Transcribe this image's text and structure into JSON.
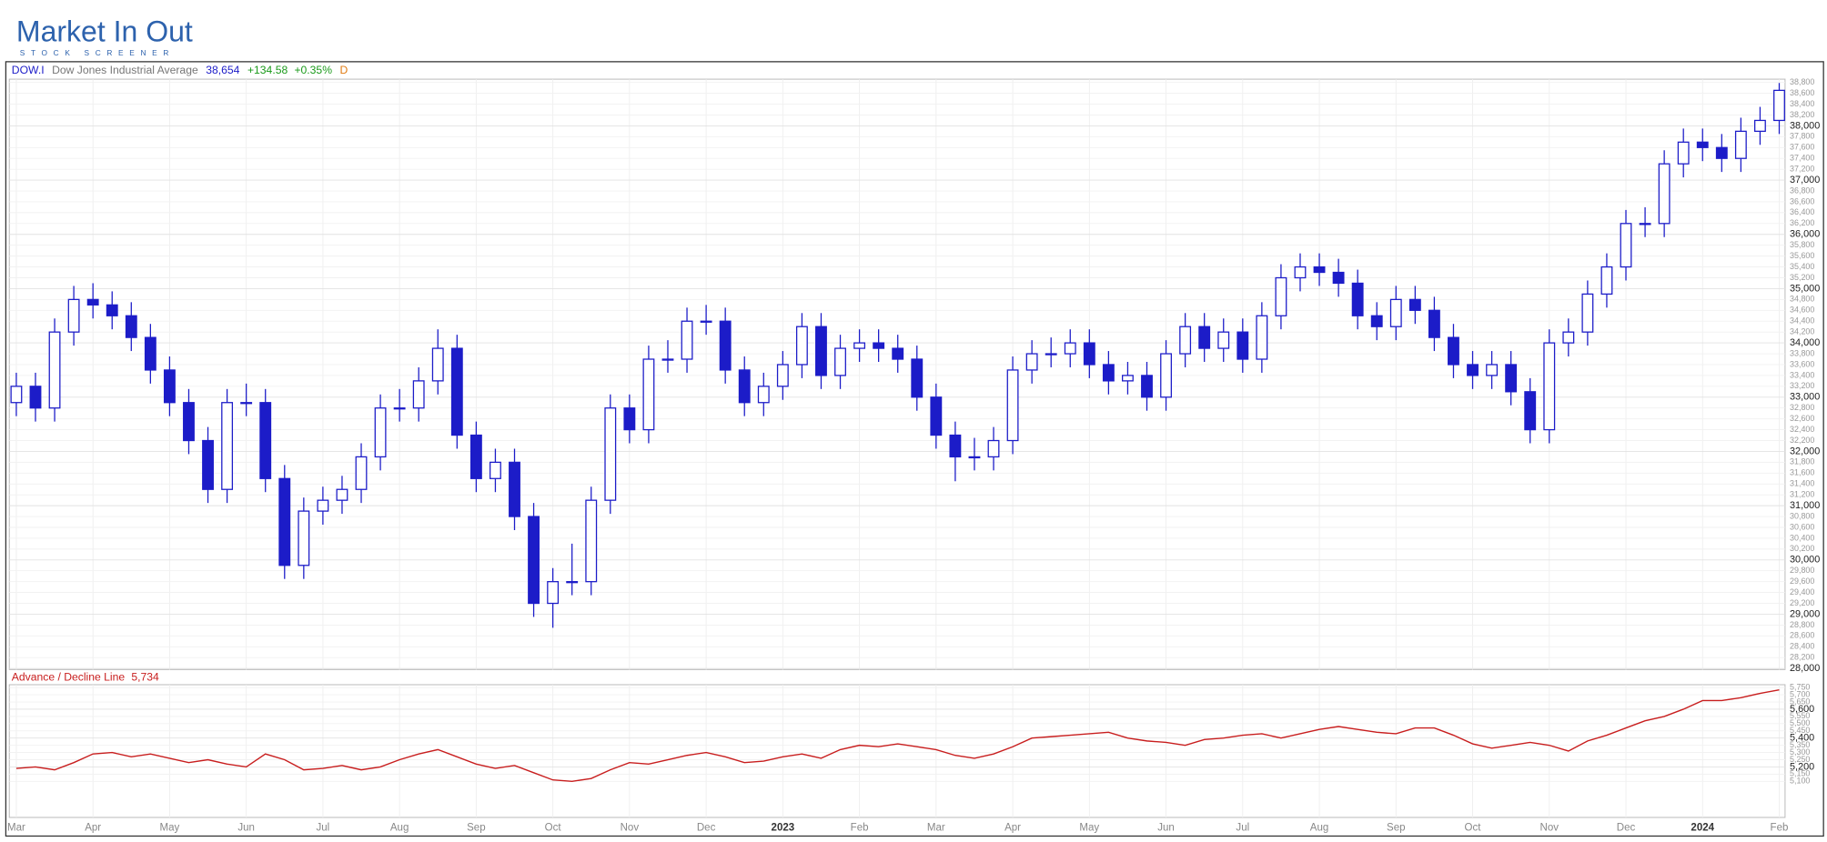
{
  "logo": {
    "name": "Market In Out",
    "tagline": "STOCK SCREENER"
  },
  "chart_data": [
    {
      "type": "candlestick",
      "symbol": "DOW.I",
      "name": "Dow Jones Industrial Average",
      "last": {
        "value": 38654,
        "label": "38,654"
      },
      "change": {
        "value": 134.58,
        "label": "+134.58"
      },
      "change_pct": {
        "value": 0.35,
        "label": "+0.35%"
      },
      "period": "D",
      "color": "#1c1cc8",
      "grid": true,
      "categories": [
        "Mar",
        null,
        null,
        null,
        "Apr",
        null,
        null,
        null,
        "May",
        null,
        null,
        null,
        "Jun",
        null,
        null,
        null,
        "Jul",
        null,
        null,
        null,
        "Aug",
        null,
        null,
        null,
        "Sep",
        null,
        null,
        null,
        "Oct",
        null,
        null,
        null,
        "Nov",
        null,
        null,
        null,
        "Dec",
        null,
        null,
        null,
        "2023",
        null,
        null,
        null,
        "Feb",
        null,
        null,
        null,
        "Mar",
        null,
        null,
        null,
        "Apr",
        null,
        null,
        null,
        "May",
        null,
        null,
        null,
        "Jun",
        null,
        null,
        null,
        "Jul",
        null,
        null,
        null,
        "Aug",
        null,
        null,
        null,
        "Sep",
        null,
        null,
        null,
        "Oct",
        null,
        null,
        null,
        "Nov",
        null,
        null,
        null,
        "Dec",
        null,
        null,
        null,
        "2024",
        null,
        null,
        null,
        "Feb"
      ],
      "open": [
        32900,
        33200,
        32800,
        34200,
        34800,
        34700,
        34500,
        34100,
        33500,
        32900,
        32200,
        31300,
        32900,
        32900,
        31500,
        29900,
        30900,
        31100,
        31300,
        31900,
        32800,
        32800,
        33300,
        33900,
        32300,
        31500,
        31800,
        30800,
        29200,
        29600,
        29600,
        31100,
        32800,
        32400,
        33700,
        33700,
        34400,
        34400,
        33500,
        32900,
        33200,
        33600,
        34300,
        33400,
        33900,
        34000,
        33900,
        33700,
        33000,
        32300,
        31900,
        31900,
        32200,
        33500,
        33800,
        33800,
        34000,
        33600,
        33300,
        33400,
        33000,
        33800,
        34300,
        33900,
        34200,
        33700,
        34500,
        35200,
        35400,
        35300,
        35100,
        34500,
        34300,
        34800,
        34600,
        34100,
        33600,
        33400,
        33600,
        33100,
        32400,
        34000,
        34200,
        34900,
        35400,
        36200,
        36200,
        37300,
        37700,
        37600,
        37400,
        37900,
        38100
      ],
      "high": [
        33450,
        33450,
        34450,
        35050,
        35100,
        34950,
        34750,
        34350,
        33750,
        33150,
        32450,
        33150,
        33250,
        33150,
        31750,
        31150,
        31350,
        31550,
        32150,
        33050,
        33150,
        33550,
        34250,
        34150,
        32550,
        32050,
        32050,
        31050,
        29850,
        30300,
        31350,
        33050,
        33050,
        33950,
        34050,
        34650,
        34700,
        34650,
        33750,
        33450,
        33850,
        34550,
        34550,
        34150,
        34250,
        34250,
        34150,
        33950,
        33250,
        32550,
        32250,
        32450,
        33750,
        34050,
        34100,
        34250,
        34250,
        33850,
        33650,
        33650,
        34050,
        34550,
        34550,
        34450,
        34450,
        34750,
        35450,
        35650,
        35650,
        35550,
        35350,
        34750,
        35050,
        35050,
        34850,
        34350,
        33850,
        33850,
        33850,
        33350,
        34250,
        34450,
        35150,
        35650,
        36450,
        36500,
        37550,
        37950,
        37950,
        37850,
        38150,
        38350,
        38790
      ],
      "low": [
        32650,
        32550,
        32550,
        33950,
        34450,
        34250,
        33850,
        33250,
        32650,
        31950,
        31050,
        31050,
        32650,
        31250,
        29650,
        29650,
        30650,
        30850,
        31050,
        31650,
        32550,
        32550,
        33050,
        32050,
        31250,
        31250,
        30550,
        28950,
        28750,
        29350,
        29350,
        30850,
        32150,
        32150,
        33450,
        33450,
        34150,
        33250,
        32650,
        32650,
        32950,
        33350,
        33150,
        33150,
        33650,
        33650,
        33450,
        32750,
        32050,
        31450,
        31650,
        31650,
        31950,
        33250,
        33550,
        33550,
        33350,
        33050,
        33050,
        32750,
        32750,
        33550,
        33650,
        33650,
        33450,
        33450,
        34250,
        34950,
        35050,
        34850,
        34250,
        34050,
        34050,
        34350,
        33850,
        33350,
        33150,
        33150,
        32850,
        32150,
        32150,
        33750,
        33950,
        34650,
        35150,
        35950,
        35950,
        37050,
        37350,
        37150,
        37150,
        37650,
        37850
      ],
      "close": [
        33200,
        32800,
        34200,
        34800,
        34700,
        34500,
        34100,
        33500,
        32900,
        32200,
        31300,
        32900,
        32900,
        31500,
        29900,
        30900,
        31100,
        31300,
        31900,
        32800,
        32800,
        33300,
        33900,
        32300,
        31500,
        31800,
        30800,
        29200,
        29600,
        29600,
        31100,
        32800,
        32400,
        33700,
        33700,
        34400,
        34400,
        33500,
        32900,
        33200,
        33600,
        34300,
        33400,
        33900,
        34000,
        33900,
        33700,
        33000,
        32300,
        31900,
        31900,
        32200,
        33500,
        33800,
        33800,
        34000,
        33600,
        33300,
        33400,
        33000,
        33800,
        34300,
        33900,
        34200,
        33700,
        34500,
        35200,
        35400,
        35300,
        35100,
        34500,
        34300,
        34800,
        34600,
        34100,
        33600,
        33400,
        33600,
        33100,
        32400,
        34000,
        34200,
        34900,
        35400,
        36200,
        36200,
        37300,
        37700,
        37600,
        37400,
        37900,
        38100,
        38654
      ],
      "ylim": [
        27980,
        38860
      ],
      "yticks": [
        {
          "value": 28000,
          "label": "28,000"
        },
        {
          "value": 28200,
          "label": "28,200"
        },
        {
          "value": 28400,
          "label": "28,400"
        },
        {
          "value": 28600,
          "label": "28,600"
        },
        {
          "value": 28800,
          "label": "28,800"
        },
        {
          "value": 29000,
          "label": "29,000"
        },
        {
          "value": 29200,
          "label": "29,200"
        },
        {
          "value": 29400,
          "label": "29,400"
        },
        {
          "value": 29600,
          "label": "29,600"
        },
        {
          "value": 29800,
          "label": "29,800"
        },
        {
          "value": 30000,
          "label": "30,000"
        },
        {
          "value": 30200,
          "label": "30,200"
        },
        {
          "value": 30400,
          "label": "30,400"
        },
        {
          "value": 30600,
          "label": "30,600"
        },
        {
          "value": 30800,
          "label": "30,800"
        },
        {
          "value": 31000,
          "label": "31,000"
        },
        {
          "value": 31200,
          "label": "31,200"
        },
        {
          "value": 31400,
          "label": "31,400"
        },
        {
          "value": 31600,
          "label": "31,600"
        },
        {
          "value": 31800,
          "label": "31,800"
        },
        {
          "value": 32000,
          "label": "32,000"
        },
        {
          "value": 32200,
          "label": "32,200"
        },
        {
          "value": 32400,
          "label": "32,400"
        },
        {
          "value": 32600,
          "label": "32,600"
        },
        {
          "value": 32800,
          "label": "32,800"
        },
        {
          "value": 33000,
          "label": "33,000"
        },
        {
          "value": 33200,
          "label": "33,200"
        },
        {
          "value": 33400,
          "label": "33,400"
        },
        {
          "value": 33600,
          "label": "33,600"
        },
        {
          "value": 33800,
          "label": "33,800"
        },
        {
          "value": 34000,
          "label": "34,000"
        },
        {
          "value": 34200,
          "label": "34,200"
        },
        {
          "value": 34400,
          "label": "34,400"
        },
        {
          "value": 34600,
          "label": "34,600"
        },
        {
          "value": 34800,
          "label": "34,800"
        },
        {
          "value": 35000,
          "label": "35,000"
        },
        {
          "value": 35200,
          "label": "35,200"
        },
        {
          "value": 35400,
          "label": "35,400"
        },
        {
          "value": 35600,
          "label": "35,600"
        },
        {
          "value": 35800,
          "label": "35,800"
        },
        {
          "value": 36000,
          "label": "36,000"
        },
        {
          "value": 36200,
          "label": "36,200"
        },
        {
          "value": 36400,
          "label": "36,400"
        },
        {
          "value": 36600,
          "label": "36,600"
        },
        {
          "value": 36800,
          "label": "36,800"
        },
        {
          "value": 37000,
          "label": "37,000"
        },
        {
          "value": 37200,
          "label": "37,200"
        },
        {
          "value": 37400,
          "label": "37,400"
        },
        {
          "value": 37600,
          "label": "37,600"
        },
        {
          "value": 37800,
          "label": "37,800"
        },
        {
          "value": 38000,
          "label": "38,000"
        },
        {
          "value": 38200,
          "label": "38,200"
        },
        {
          "value": 38400,
          "label": "38,400"
        },
        {
          "value": 38600,
          "label": "38,600"
        },
        {
          "value": 38800,
          "label": "38,800"
        }
      ]
    },
    {
      "type": "line",
      "title": "Advance / Decline Line",
      "last": {
        "value": 5734,
        "label": "5,734"
      },
      "color": "#c81e1e",
      "grid": true,
      "values": [
        5190,
        5200,
        5180,
        5230,
        5290,
        5300,
        5270,
        5290,
        5260,
        5230,
        5250,
        5220,
        5200,
        5290,
        5250,
        5180,
        5190,
        5210,
        5180,
        5200,
        5250,
        5290,
        5320,
        5270,
        5220,
        5190,
        5210,
        5160,
        5110,
        5100,
        5120,
        5180,
        5230,
        5220,
        5250,
        5280,
        5300,
        5270,
        5230,
        5240,
        5270,
        5290,
        5260,
        5320,
        5350,
        5340,
        5360,
        5340,
        5320,
        5280,
        5260,
        5290,
        5340,
        5400,
        5410,
        5420,
        5430,
        5440,
        5400,
        5380,
        5370,
        5350,
        5390,
        5400,
        5420,
        5430,
        5400,
        5430,
        5460,
        5480,
        5460,
        5440,
        5430,
        5470,
        5470,
        5420,
        5360,
        5330,
        5350,
        5370,
        5350,
        5310,
        5380,
        5420,
        5470,
        5520,
        5550,
        5600,
        5660,
        5660,
        5680,
        5710,
        5734
      ],
      "ylim": [
        4850,
        5770
      ],
      "yticks": [
        {
          "value": 5100,
          "label": "5,100"
        },
        {
          "value": 5150,
          "label": "5,150"
        },
        {
          "value": 5200,
          "label": "5,200"
        },
        {
          "value": 5250,
          "label": "5,250"
        },
        {
          "value": 5300,
          "label": "5,300"
        },
        {
          "value": 5350,
          "label": "5,350"
        },
        {
          "value": 5400,
          "label": "5,400"
        },
        {
          "value": 5450,
          "label": "5,450"
        },
        {
          "value": 5500,
          "label": "5,500"
        },
        {
          "value": 5550,
          "label": "5,550"
        },
        {
          "value": 5600,
          "label": "5,600"
        },
        {
          "value": 5650,
          "label": "5,650"
        },
        {
          "value": 5700,
          "label": "5,700"
        },
        {
          "value": 5750,
          "label": "5,750"
        }
      ]
    }
  ]
}
